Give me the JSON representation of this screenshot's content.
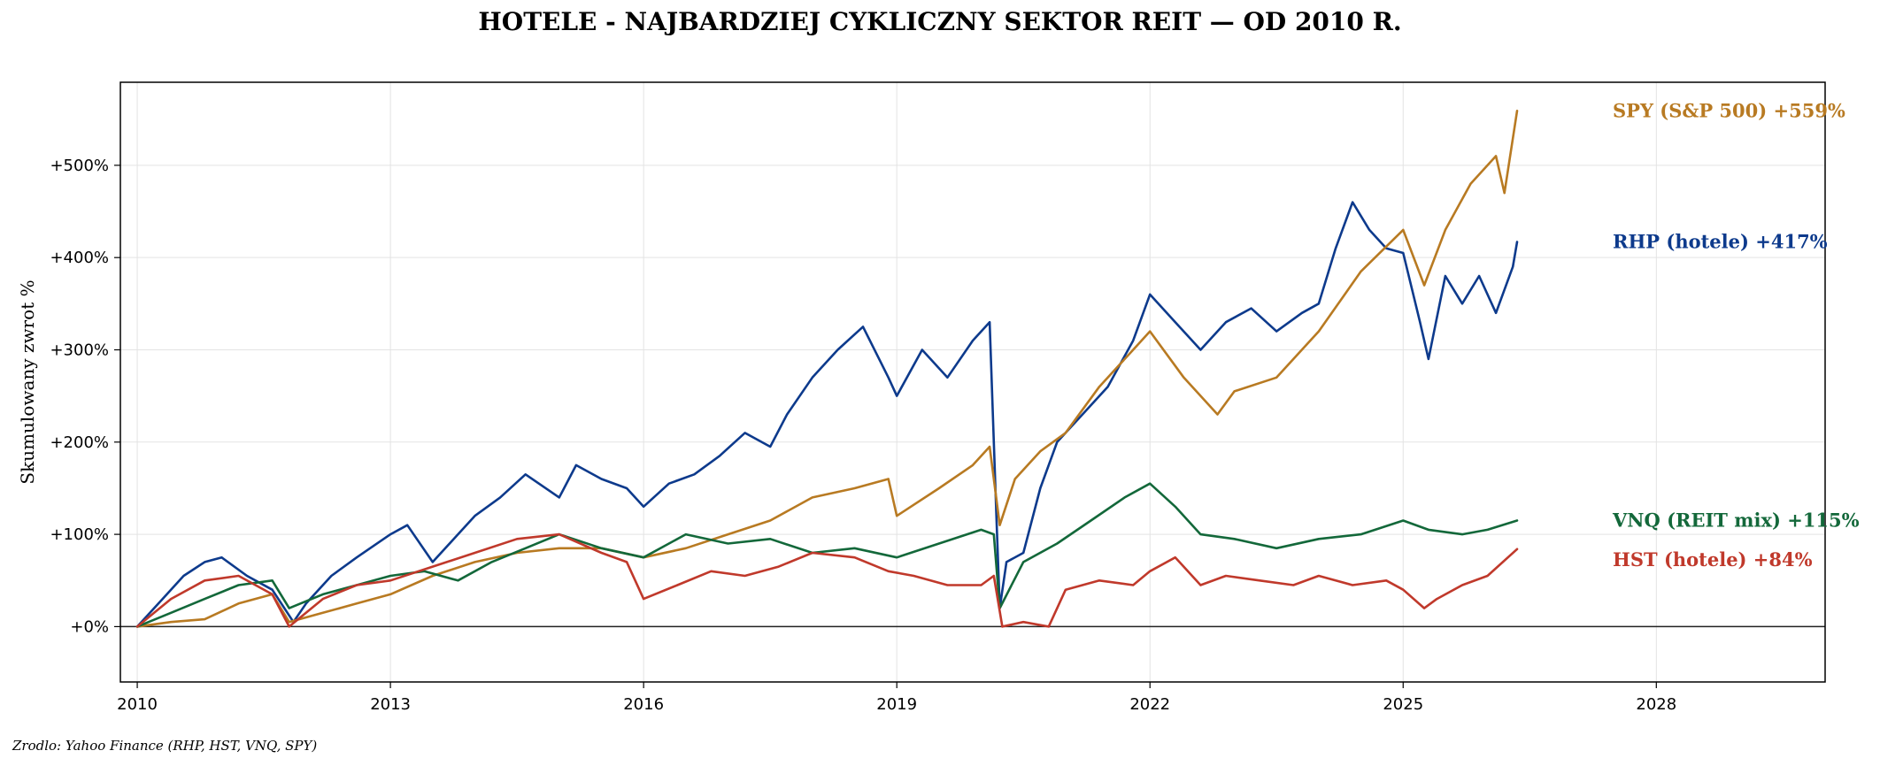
{
  "chart_data": {
    "type": "line",
    "title": "HOTELE - NAJBARDZIEJ CYKLICZNY SEKTOR REIT — OD 2010 R.",
    "xlabel": "",
    "ylabel": "Skumulowany zwrot %",
    "xlim": [
      2009.8,
      2030.0
    ],
    "ylim": [
      -60,
      590
    ],
    "x_ticks": [
      2010,
      2013,
      2016,
      2019,
      2022,
      2025,
      2028
    ],
    "x_tick_labels": [
      "2010",
      "2013",
      "2016",
      "2019",
      "2022",
      "2025",
      "2028"
    ],
    "y_ticks": [
      0,
      100,
      200,
      300,
      400,
      500
    ],
    "y_tick_labels": [
      "+0%",
      "+100%",
      "+200%",
      "+300%",
      "+400%",
      "+500%"
    ],
    "grid": true,
    "zero_line": true,
    "source_note": "Zrodlo: Yahoo Finance (RHP, HST, VNQ, SPY)",
    "series": [
      {
        "name": "RHP (hotele)",
        "end_label": "RHP (hotele)  +417%",
        "color": "#0d3a8c",
        "x": [
          2010.0,
          2010.3,
          2010.55,
          2010.8,
          2011.0,
          2011.3,
          2011.6,
          2011.85,
          2012.0,
          2012.3,
          2012.6,
          2013.0,
          2013.2,
          2013.5,
          2013.8,
          2014.0,
          2014.3,
          2014.6,
          2015.0,
          2015.2,
          2015.5,
          2015.8,
          2016.0,
          2016.3,
          2016.6,
          2016.9,
          2017.2,
          2017.5,
          2017.7,
          2018.0,
          2018.3,
          2018.6,
          2018.9,
          2019.0,
          2019.3,
          2019.6,
          2019.9,
          2020.1,
          2020.18,
          2020.22,
          2020.3,
          2020.5,
          2020.7,
          2020.9,
          2021.2,
          2021.5,
          2021.8,
          2022.0,
          2022.3,
          2022.6,
          2022.9,
          2023.2,
          2023.5,
          2023.8,
          2024.0,
          2024.2,
          2024.4,
          2024.6,
          2024.8,
          2025.0,
          2025.2,
          2025.3,
          2025.5,
          2025.7,
          2025.9,
          2026.1,
          2026.3,
          2026.35
        ],
        "values": [
          0,
          30,
          55,
          70,
          75,
          55,
          40,
          5,
          25,
          55,
          75,
          100,
          110,
          70,
          100,
          120,
          140,
          165,
          140,
          175,
          160,
          150,
          130,
          155,
          165,
          185,
          210,
          195,
          230,
          270,
          300,
          325,
          270,
          250,
          300,
          270,
          310,
          330,
          120,
          20,
          70,
          80,
          150,
          200,
          230,
          260,
          310,
          360,
          330,
          300,
          330,
          345,
          320,
          340,
          350,
          410,
          460,
          430,
          410,
          405,
          330,
          290,
          380,
          350,
          380,
          340,
          390,
          417
        ]
      },
      {
        "name": "SPY (S&P 500)",
        "end_label": "SPY (S&P 500)  +559%",
        "color": "#b87a22",
        "x": [
          2010.0,
          2010.4,
          2010.8,
          2011.2,
          2011.6,
          2011.8,
          2012.2,
          2012.6,
          2013.0,
          2013.5,
          2014.0,
          2014.5,
          2015.0,
          2015.5,
          2016.0,
          2016.5,
          2017.0,
          2017.5,
          2018.0,
          2018.5,
          2018.9,
          2019.0,
          2019.5,
          2019.9,
          2020.1,
          2020.22,
          2020.4,
          2020.7,
          2021.0,
          2021.4,
          2021.8,
          2022.0,
          2022.4,
          2022.8,
          2023.0,
          2023.5,
          2024.0,
          2024.5,
          2025.0,
          2025.25,
          2025.5,
          2025.8,
          2026.1,
          2026.2,
          2026.35
        ],
        "values": [
          0,
          5,
          8,
          25,
          35,
          5,
          15,
          25,
          35,
          55,
          70,
          80,
          85,
          85,
          75,
          85,
          100,
          115,
          140,
          150,
          160,
          120,
          150,
          175,
          195,
          110,
          160,
          190,
          210,
          260,
          300,
          320,
          270,
          230,
          255,
          270,
          320,
          385,
          430,
          370,
          430,
          480,
          510,
          470,
          559
        ]
      },
      {
        "name": "VNQ (REIT mix)",
        "end_label": "VNQ (REIT mix)  +115%",
        "color": "#13683a",
        "x": [
          2010.0,
          2010.4,
          2010.8,
          2011.2,
          2011.6,
          2011.8,
          2012.2,
          2012.6,
          2013.0,
          2013.4,
          2013.8,
          2014.2,
          2014.6,
          2015.0,
          2015.5,
          2016.0,
          2016.5,
          2017.0,
          2017.5,
          2018.0,
          2018.5,
          2019.0,
          2019.5,
          2020.0,
          2020.15,
          2020.22,
          2020.5,
          2020.9,
          2021.3,
          2021.7,
          2022.0,
          2022.3,
          2022.6,
          2023.0,
          2023.5,
          2024.0,
          2024.5,
          2025.0,
          2025.3,
          2025.7,
          2026.0,
          2026.35
        ],
        "values": [
          0,
          15,
          30,
          45,
          50,
          20,
          35,
          45,
          55,
          60,
          50,
          70,
          85,
          100,
          85,
          75,
          100,
          90,
          95,
          80,
          85,
          75,
          90,
          105,
          100,
          20,
          70,
          90,
          115,
          140,
          155,
          130,
          100,
          95,
          85,
          95,
          100,
          115,
          105,
          100,
          105,
          115
        ]
      },
      {
        "name": "HST (hotele)",
        "end_label": "HST (hotele)  +84%",
        "color": "#c0392b",
        "x": [
          2010.0,
          2010.4,
          2010.8,
          2011.2,
          2011.6,
          2011.8,
          2012.2,
          2012.6,
          2013.0,
          2013.5,
          2014.0,
          2014.5,
          2015.0,
          2015.5,
          2015.8,
          2016.0,
          2016.4,
          2016.8,
          2017.2,
          2017.6,
          2018.0,
          2018.5,
          2018.9,
          2019.2,
          2019.6,
          2020.0,
          2020.15,
          2020.25,
          2020.5,
          2020.8,
          2021.0,
          2021.4,
          2021.8,
          2022.0,
          2022.3,
          2022.6,
          2022.9,
          2023.3,
          2023.7,
          2024.0,
          2024.4,
          2024.8,
          2025.0,
          2025.25,
          2025.4,
          2025.7,
          2026.0,
          2026.35
        ],
        "values": [
          0,
          30,
          50,
          55,
          35,
          0,
          30,
          45,
          50,
          65,
          80,
          95,
          100,
          80,
          70,
          30,
          45,
          60,
          55,
          65,
          80,
          75,
          60,
          55,
          45,
          45,
          55,
          0,
          5,
          0,
          40,
          50,
          45,
          60,
          75,
          45,
          55,
          50,
          45,
          55,
          45,
          50,
          40,
          20,
          30,
          45,
          55,
          84
        ]
      }
    ]
  }
}
